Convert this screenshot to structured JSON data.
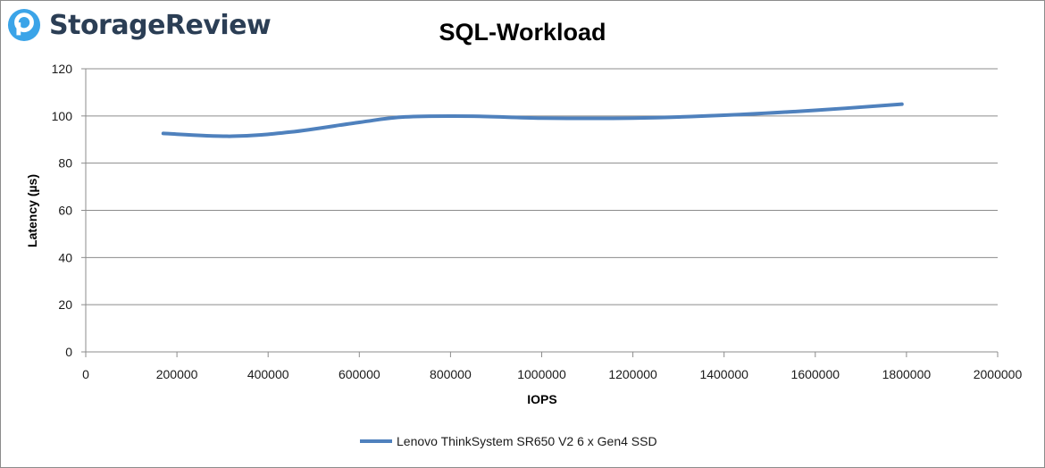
{
  "brand": {
    "name": "StorageReview",
    "color": "#2b3e55",
    "accent": "#3ba4e8",
    "icon": "storagereview-logo-icon"
  },
  "chart_data": {
    "type": "line",
    "title": "SQL-Workload",
    "xlabel": "IOPS",
    "ylabel": "Latency (µs)",
    "xlim": [
      0,
      2000000
    ],
    "ylim": [
      0,
      120
    ],
    "xticks": [
      0,
      200000,
      400000,
      600000,
      800000,
      1000000,
      1200000,
      1400000,
      1600000,
      1800000,
      2000000
    ],
    "yticks": [
      0,
      20,
      40,
      60,
      80,
      100,
      120
    ],
    "grid": "horizontal",
    "legend_position": "bottom",
    "series": [
      {
        "name": "Lenovo ThinkSystem SR650 V2 6 x Gen4 SSD",
        "color": "#4f81bd",
        "x": [
          170000,
          320000,
          450000,
          600000,
          700000,
          850000,
          1000000,
          1200000,
          1400000,
          1600000,
          1790000
        ],
        "y": [
          92.6,
          91.4,
          93.2,
          97.3,
          99.6,
          99.9,
          99.1,
          99.1,
          100.3,
          102.4,
          105
        ]
      }
    ]
  }
}
